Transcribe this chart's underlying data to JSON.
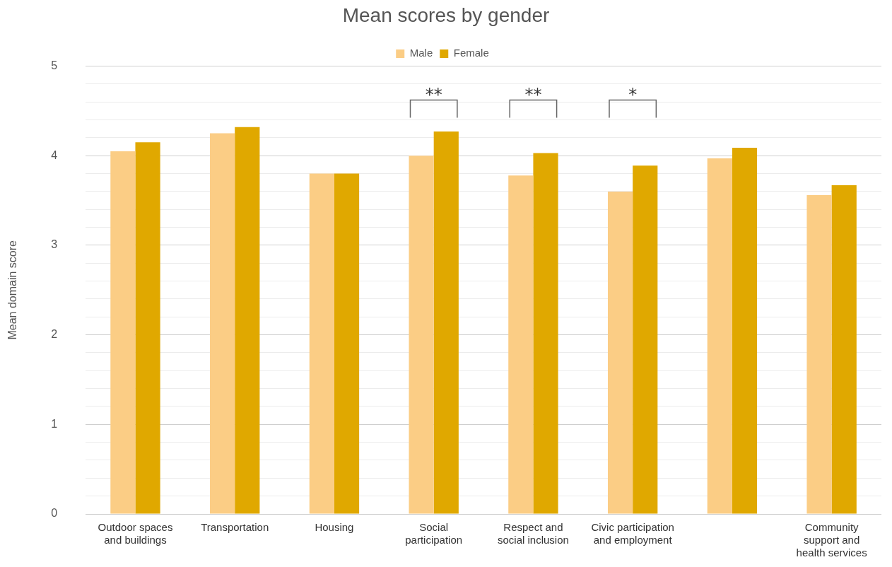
{
  "chart_data": {
    "type": "bar",
    "title": "Mean scores by gender",
    "ylabel": "Mean domain score",
    "categories": [
      "Outdoor spaces and buildings",
      "Transportation",
      "Housing",
      "Social participation",
      "Respect and social inclusion",
      "Civic participation and employment",
      null,
      "Community support and health services"
    ],
    "series": [
      {
        "name": "Male",
        "color": "#fbcd85",
        "values": [
          4.05,
          4.25,
          3.8,
          4.0,
          3.78,
          3.6,
          3.97,
          3.56
        ]
      },
      {
        "name": "Female",
        "color": "#e0a800",
        "values": [
          4.15,
          4.32,
          3.8,
          4.27,
          4.03,
          3.89,
          4.09,
          3.67
        ]
      }
    ],
    "ylim": [
      0,
      5
    ],
    "yticks": [
      0,
      {
        "value": 0.2,
        "label": null
      },
      {
        "value": 0.4,
        "label": null
      },
      {
        "value": 0.6,
        "label": null
      },
      {
        "value": 0.8,
        "label": null
      },
      1,
      {
        "value": 1.2,
        "label": null
      },
      {
        "value": 1.4,
        "label": null
      },
      {
        "value": 1.6,
        "label": null
      },
      {
        "value": 1.8,
        "label": null
      },
      2,
      {
        "value": 2.2,
        "label": null
      },
      {
        "value": 2.4,
        "label": null
      },
      {
        "value": 2.6,
        "label": null
      },
      {
        "value": 2.8,
        "label": null
      },
      3,
      {
        "value": 3.2,
        "label": null
      },
      {
        "value": 3.4,
        "label": null
      },
      {
        "value": 3.6,
        "label": null
      },
      {
        "value": 3.8,
        "label": null
      },
      4,
      {
        "value": 4.2,
        "label": null
      },
      {
        "value": 4.4,
        "label": null
      },
      {
        "value": 4.6,
        "label": null
      },
      {
        "value": 4.8,
        "label": null
      },
      5
    ],
    "annotations": [
      "**",
      "**",
      "*"
    ],
    "grid": "y",
    "legend": "top"
  }
}
